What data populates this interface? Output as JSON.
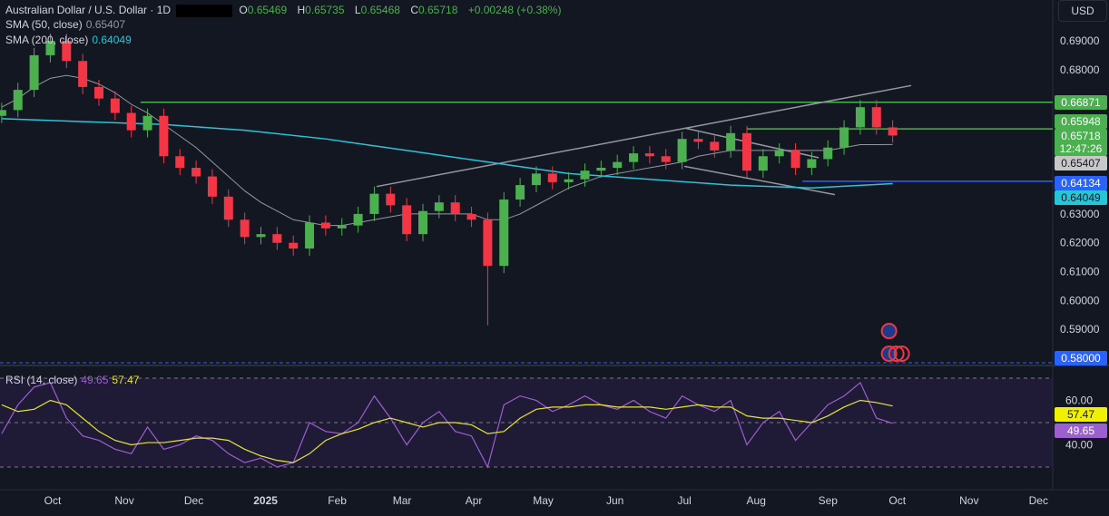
{
  "header": {
    "symbol_title": "Australian Dollar / U.S. Dollar · 1D",
    "open_label": "O",
    "open": "0.65469",
    "high_label": "H",
    "high": "0.65735",
    "low_label": "L",
    "low": "0.65468",
    "close_label": "C",
    "close": "0.65718",
    "change": "+0.00248 (+0.38%)",
    "sma50_label": "SMA (50, close)",
    "sma50_value": "0.65407",
    "sma200_label": "SMA (200, close)",
    "sma200_value": "0.64049",
    "rsi_label": "RSI (14, close)",
    "rsi_value": "49.65",
    "rsi_ma_value": "57.47",
    "currency": "USD"
  },
  "colors": {
    "up": "#26a69a",
    "up_candle": "#4caf50",
    "down": "#f23645",
    "sma50": "#9598a1",
    "sma200": "#26c6da",
    "level": "#4caf50",
    "support": "#2962ff",
    "rsi": "#9c5fd0",
    "rsi_ma": "#e6e62e",
    "trendline": "#9598a1"
  },
  "chart_data": {
    "type": "candlestick",
    "price_axis": {
      "ylim": [
        0.578,
        0.697
      ],
      "ticks": [
        "0.69000",
        "0.68000",
        "0.63000",
        "0.62000",
        "0.61000",
        "0.60000",
        "0.59000"
      ]
    },
    "x_ticks": [
      {
        "label": "Oct",
        "date": "2024-10-01"
      },
      {
        "label": "Nov",
        "date": "2024-11-01"
      },
      {
        "label": "Dec",
        "date": "2024-12-01"
      },
      {
        "label": "2025",
        "date": "2025-01-01",
        "bold": true
      },
      {
        "label": "Feb",
        "date": "2025-02-01"
      },
      {
        "label": "Mar",
        "date": "2025-03-01"
      },
      {
        "label": "Apr",
        "date": "2025-04-01"
      },
      {
        "label": "May",
        "date": "2025-05-01"
      },
      {
        "label": "Jun",
        "date": "2025-06-01"
      },
      {
        "label": "Jul",
        "date": "2025-07-01"
      },
      {
        "label": "Aug",
        "date": "2025-08-01"
      },
      {
        "label": "Sep",
        "date": "2025-09-01"
      },
      {
        "label": "Oct",
        "date": "2025-10-01"
      },
      {
        "label": "Nov",
        "date": "2025-11-01"
      },
      {
        "label": "Dec",
        "date": "2025-12-01"
      }
    ],
    "dates": [
      "2024-09-09",
      "2024-09-16",
      "2024-09-23",
      "2024-09-30",
      "2024-10-07",
      "2024-10-14",
      "2024-10-21",
      "2024-10-28",
      "2024-11-04",
      "2024-11-11",
      "2024-11-18",
      "2024-11-25",
      "2024-12-02",
      "2024-12-09",
      "2024-12-16",
      "2024-12-23",
      "2024-12-30",
      "2025-01-06",
      "2025-01-13",
      "2025-01-20",
      "2025-01-27",
      "2025-02-03",
      "2025-02-10",
      "2025-02-17",
      "2025-02-24",
      "2025-03-03",
      "2025-03-10",
      "2025-03-17",
      "2025-03-24",
      "2025-03-31",
      "2025-04-07",
      "2025-04-14",
      "2025-04-21",
      "2025-04-28",
      "2025-05-05",
      "2025-05-12",
      "2025-05-19",
      "2025-05-26",
      "2025-06-02",
      "2025-06-09",
      "2025-06-16",
      "2025-06-23",
      "2025-06-30",
      "2025-07-07",
      "2025-07-14",
      "2025-07-21",
      "2025-07-28",
      "2025-08-04",
      "2025-08-11",
      "2025-08-18",
      "2025-08-25",
      "2025-09-01",
      "2025-09-08",
      "2025-09-15",
      "2025-09-22",
      "2025-09-29"
    ],
    "close": [
      0.666,
      0.673,
      0.685,
      0.69,
      0.683,
      0.674,
      0.67,
      0.665,
      0.659,
      0.664,
      0.65,
      0.646,
      0.643,
      0.636,
      0.628,
      0.622,
      0.623,
      0.62,
      0.618,
      0.627,
      0.625,
      0.626,
      0.63,
      0.637,
      0.633,
      0.623,
      0.631,
      0.634,
      0.63,
      0.628,
      0.612,
      0.635,
      0.64,
      0.644,
      0.641,
      0.642,
      0.645,
      0.646,
      0.648,
      0.651,
      0.65,
      0.648,
      0.656,
      0.655,
      0.652,
      0.658,
      0.645,
      0.65,
      0.652,
      0.646,
      0.649,
      0.653,
      0.66,
      0.667,
      0.66,
      0.65718
    ],
    "notable_low": {
      "date": "2025-04-07",
      "value": 0.5914
    },
    "sma50": [
      0.667,
      0.67,
      0.674,
      0.677,
      0.678,
      0.677,
      0.675,
      0.672,
      0.668,
      0.665,
      0.661,
      0.657,
      0.653,
      0.648,
      0.643,
      0.638,
      0.634,
      0.631,
      0.628,
      0.627,
      0.626,
      0.626,
      0.627,
      0.628,
      0.629,
      0.63,
      0.63,
      0.63,
      0.63,
      0.63,
      0.628,
      0.628,
      0.63,
      0.633,
      0.636,
      0.639,
      0.641,
      0.643,
      0.644,
      0.645,
      0.646,
      0.647,
      0.648,
      0.65,
      0.651,
      0.652,
      0.652,
      0.652,
      0.652,
      0.652,
      0.652,
      0.652,
      0.653,
      0.654,
      0.654,
      0.65407
    ],
    "sma200": [
      [
        0,
        0.663
      ],
      [
        5,
        0.662
      ],
      [
        10,
        0.661
      ],
      [
        15,
        0.659
      ],
      [
        20,
        0.656
      ],
      [
        25,
        0.652
      ],
      [
        30,
        0.648
      ],
      [
        35,
        0.644
      ],
      [
        40,
        0.642
      ],
      [
        45,
        0.64
      ],
      [
        50,
        0.639
      ],
      [
        55,
        0.64049
      ]
    ],
    "horizontal_levels": [
      {
        "value": "0.66871",
        "from": "2024-11-08",
        "color": "level"
      },
      {
        "value": "0.65948",
        "from": "2025-07-28",
        "color": "level"
      },
      {
        "value": "0.64134",
        "from": "2025-08-21",
        "color": "support"
      }
    ],
    "trendlines": [
      {
        "from": [
          "2025-02-18",
          0.6395
        ],
        "to": [
          "2025-10-07",
          0.6745
        ]
      },
      {
        "from": [
          "2025-07-01",
          0.6598
        ],
        "to": [
          "2025-08-28",
          0.6495
        ]
      },
      {
        "from": [
          "2025-07-01",
          0.6465
        ],
        "to": [
          "2025-09-04",
          0.6367
        ]
      }
    ],
    "price_labels": [
      {
        "text": "0.66871",
        "bg": "#4caf50",
        "fg": "#ffffff",
        "value": 0.66871
      },
      {
        "text": "0.65948",
        "bg": "#4caf50",
        "fg": "#ffffff",
        "value": 0.65948
      },
      {
        "text": "0.65718",
        "sub": "12:47:26",
        "bg": "#4caf50",
        "fg": "#ffffff",
        "value": 0.65718
      },
      {
        "text": "0.65407",
        "bg": "#c8c8c8",
        "fg": "#131722",
        "value": 0.65407
      },
      {
        "text": "0.64134",
        "bg": "#2962ff",
        "fg": "#ffffff",
        "value": 0.64134
      },
      {
        "text": "0.64049",
        "bg": "#26c6da",
        "fg": "#131722",
        "value": 0.64049
      },
      {
        "text": "0.58000",
        "bg": "#2962ff",
        "fg": "#ffffff",
        "value": 0.58
      }
    ],
    "rsi": {
      "levels": [
        70,
        50,
        30
      ],
      "ticks": [
        "60.00",
        "40.00"
      ],
      "values": [
        45,
        58,
        66,
        68,
        52,
        44,
        42,
        38,
        36,
        48,
        38,
        40,
        44,
        42,
        36,
        32,
        34,
        30,
        32,
        50,
        46,
        45,
        50,
        62,
        52,
        40,
        50,
        55,
        46,
        44,
        30,
        58,
        62,
        60,
        55,
        58,
        62,
        58,
        56,
        60,
        55,
        52,
        62,
        58,
        55,
        60,
        40,
        50,
        55,
        42,
        50,
        58,
        62,
        68,
        52,
        49.65
      ],
      "ma": [
        58,
        55,
        56,
        60,
        58,
        52,
        46,
        42,
        40,
        41,
        41,
        42,
        43,
        43,
        42,
        38,
        35,
        33,
        32,
        36,
        42,
        45,
        47,
        50,
        52,
        50,
        48,
        50,
        50,
        49,
        45,
        46,
        52,
        56,
        57,
        57,
        58,
        58,
        57,
        57,
        57,
        56,
        57,
        58,
        57,
        57,
        53,
        52,
        52,
        51,
        50,
        53,
        57,
        60,
        59,
        57.47
      ],
      "labels": [
        {
          "text": "57.47",
          "bg": "#f0f000",
          "fg": "#131722",
          "value": 57.47
        },
        {
          "text": "49.65",
          "bg": "#9c5fd0",
          "fg": "#ffffff",
          "value": 49.65
        }
      ]
    },
    "events": [
      {
        "icon": "au-flag-icon",
        "date": "2025-09-29"
      },
      {
        "icon": "us-flag-icon",
        "date": "2025-09-29"
      }
    ]
  }
}
